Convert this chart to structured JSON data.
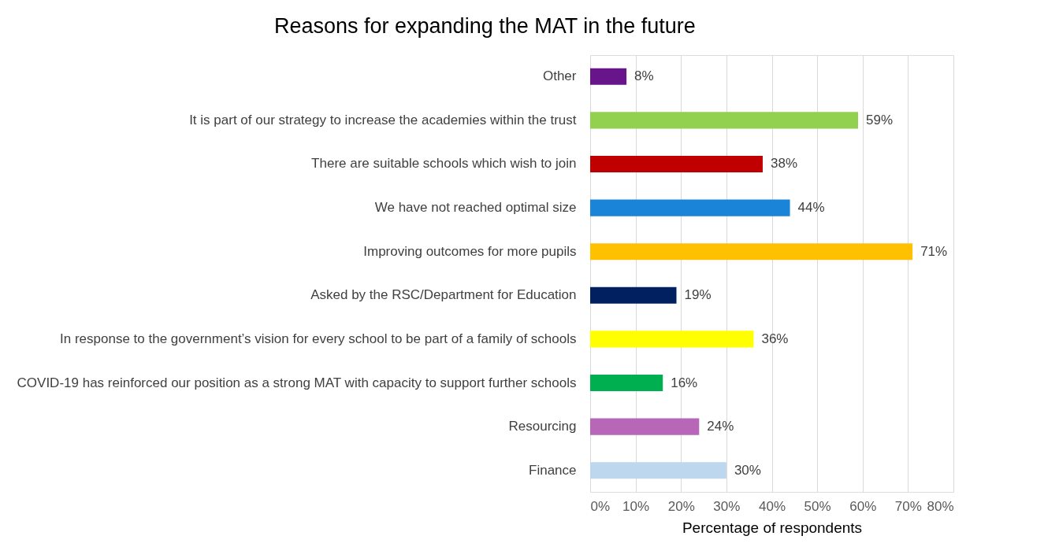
{
  "chart_data": {
    "type": "bar",
    "orientation": "horizontal",
    "title": "Reasons for expanding the MAT in the future",
    "xlabel": "Percentage of respondents",
    "categories": [
      "Other",
      "It is part of our strategy to increase the academies within the trust",
      "There are suitable schools which wish to join",
      "We have not reached optimal size",
      "Improving outcomes for more pupils",
      "Asked by the RSC/Department for Education",
      "In response to the government’s vision for every school to be part of a family of schools",
      "COVID-19 has reinforced our position as a strong MAT with capacity to support further schools",
      "Resourcing",
      "Finance"
    ],
    "values": [
      8,
      59,
      38,
      44,
      71,
      19,
      36,
      16,
      24,
      30
    ],
    "colors": [
      "#68158c",
      "#92d050",
      "#c00000",
      "#1a84d8",
      "#ffc000",
      "#002060",
      "#ffff00",
      "#00b050",
      "#b867b8",
      "#bdd7ee"
    ],
    "value_labels": [
      "8%",
      "59%",
      "38%",
      "44%",
      "71%",
      "19%",
      "36%",
      "16%",
      "24%",
      "30%"
    ],
    "xlim": [
      0,
      80
    ],
    "xticks": [
      {
        "value": 0,
        "label": "0%"
      },
      {
        "value": 10,
        "label": "10%"
      },
      {
        "value": 20,
        "label": "20%"
      },
      {
        "value": 30,
        "label": "30%"
      },
      {
        "value": 40,
        "label": "40%"
      },
      {
        "value": 50,
        "label": "50%"
      },
      {
        "value": 60,
        "label": "60%"
      },
      {
        "value": 70,
        "label": "70%"
      },
      {
        "value": 80,
        "label": "80%"
      }
    ],
    "grid": "x"
  }
}
